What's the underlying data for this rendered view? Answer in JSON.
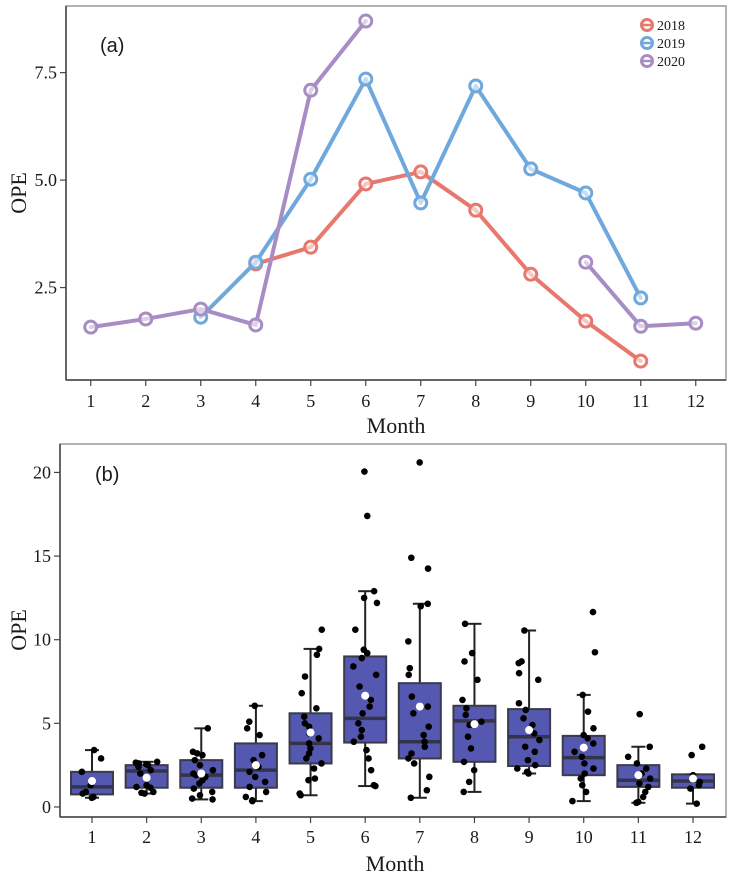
{
  "chart_data": [
    {
      "type": "line",
      "panel_label": "(a)",
      "title": "",
      "xlabel": "Month",
      "ylabel": "OPE",
      "x_ticks": [
        1,
        2,
        3,
        4,
        5,
        6,
        7,
        8,
        9,
        10,
        11,
        12
      ],
      "x_tick_labels": [
        "1",
        "2",
        "3",
        "4",
        "5",
        "6",
        "7",
        "8",
        "9",
        "10",
        "11",
        "12"
      ],
      "y_ticks": [
        2.5,
        5.0,
        7.5
      ],
      "y_tick_labels": [
        "2.5",
        "5.0",
        "7.5"
      ],
      "xlim": [
        0.55,
        12.55
      ],
      "ylim": [
        0.35,
        9.05
      ],
      "grid": false,
      "legend_position": "top-right",
      "marker": "open-circle",
      "series": [
        {
          "name": "2018",
          "color": "#E8776D",
          "segments": [
            {
              "x": [
                4,
                5,
                6,
                7,
                8,
                9,
                10,
                11
              ],
              "y": [
                3.05,
                3.44,
                4.91,
                5.19,
                4.3,
                2.81,
                1.72,
                0.79
              ]
            }
          ]
        },
        {
          "name": "2019",
          "color": "#6FA8DC",
          "segments": [
            {
              "x": [
                3,
                4,
                5,
                6,
                7,
                8,
                9,
                10,
                11
              ],
              "y": [
                1.81,
                3.09,
                5.02,
                7.35,
                4.47,
                7.19,
                5.26,
                4.7,
                2.26
              ]
            }
          ]
        },
        {
          "name": "2020",
          "color": "#A88DC4",
          "segments": [
            {
              "x": [
                1,
                2,
                3,
                4,
                5,
                6
              ],
              "y": [
                1.58,
                1.77,
                2.0,
                1.63,
                7.09,
                8.7
              ]
            },
            {
              "x": [
                10,
                11,
                12
              ],
              "y": [
                3.09,
                1.6,
                1.67
              ]
            }
          ]
        }
      ]
    },
    {
      "type": "box",
      "panel_label": "(b)",
      "title": "",
      "xlabel": "Month",
      "ylabel": "OPE",
      "x_tick_labels": [
        "1",
        "2",
        "3",
        "4",
        "5",
        "6",
        "7",
        "8",
        "9",
        "10",
        "11",
        "12"
      ],
      "y_ticks": [
        0,
        5,
        10,
        15,
        20
      ],
      "y_tick_labels": [
        "0",
        "5",
        "10",
        "15",
        "20"
      ],
      "ylim": [
        -0.6,
        21.7
      ],
      "grid": false,
      "box_color": "#5558B0",
      "box_edge_color": "#3A3A4A",
      "point_color": "#000000",
      "mean_marker_color": "#FFFFFF",
      "boxes": [
        {
          "month": "1",
          "whisker_low": 0.55,
          "q1": 0.75,
          "median": 1.2,
          "q3": 2.1,
          "whisker_high": 3.4,
          "mean": 1.55,
          "points": [
            0.55,
            0.6,
            0.8,
            0.9,
            1.3,
            1.55,
            2.1,
            2.9,
            3.4
          ]
        },
        {
          "month": "2",
          "whisker_low": 0.8,
          "q1": 1.15,
          "median": 2.15,
          "q3": 2.5,
          "whisker_high": 2.7,
          "mean": 1.75,
          "points": [
            0.8,
            0.85,
            0.9,
            1.15,
            1.2,
            1.3,
            2.0,
            2.2,
            2.4,
            2.5,
            2.55,
            2.6,
            2.65,
            2.7
          ]
        },
        {
          "month": "3",
          "whisker_low": 0.45,
          "q1": 1.15,
          "median": 1.9,
          "q3": 2.8,
          "whisker_high": 4.7,
          "mean": 2.0,
          "points": [
            0.45,
            0.5,
            0.7,
            0.9,
            1.1,
            1.4,
            1.6,
            1.8,
            1.9,
            2.0,
            2.2,
            2.5,
            2.8,
            3.1,
            3.2,
            3.3,
            4.7
          ]
        },
        {
          "month": "4",
          "whisker_low": 0.35,
          "q1": 1.15,
          "median": 2.2,
          "q3": 3.8,
          "whisker_high": 6.05,
          "mean": 2.5,
          "points": [
            0.35,
            0.4,
            0.6,
            0.9,
            1.2,
            1.5,
            1.8,
            2.1,
            2.4,
            2.8,
            3.1,
            4.3,
            4.7,
            5.1,
            6.05
          ]
        },
        {
          "month": "5",
          "whisker_low": 0.7,
          "q1": 2.6,
          "median": 3.8,
          "q3": 5.6,
          "whisker_high": 9.45,
          "mean": 4.45,
          "points": [
            0.7,
            0.8,
            1.6,
            1.7,
            2.3,
            2.6,
            2.9,
            3.2,
            3.5,
            3.8,
            4.1,
            4.4,
            4.8,
            5.0,
            5.4,
            5.9,
            6.8,
            7.8,
            9.1,
            9.45,
            10.6
          ]
        },
        {
          "month": "6",
          "whisker_low": 1.25,
          "q1": 3.85,
          "median": 5.3,
          "q3": 9.0,
          "whisker_high": 12.9,
          "mean": 6.65,
          "points": [
            1.25,
            1.3,
            2.2,
            2.9,
            3.4,
            3.9,
            4.2,
            4.6,
            5.0,
            5.6,
            6.0,
            6.4,
            7.2,
            7.9,
            8.4,
            8.9,
            9.2,
            9.4,
            10.6,
            12.2,
            12.5,
            12.9,
            17.4,
            20.05
          ]
        },
        {
          "month": "7",
          "whisker_low": 0.55,
          "q1": 2.9,
          "median": 3.9,
          "q3": 7.4,
          "whisker_high": 12.15,
          "mean": 6.0,
          "points": [
            0.55,
            1.0,
            1.8,
            2.6,
            2.9,
            3.2,
            3.6,
            3.9,
            4.3,
            4.8,
            5.6,
            6.0,
            6.6,
            7.9,
            8.3,
            9.9,
            12.0,
            12.15,
            14.25,
            14.9,
            20.6
          ]
        },
        {
          "month": "8",
          "whisker_low": 0.9,
          "q1": 2.7,
          "median": 5.15,
          "q3": 6.05,
          "whisker_high": 10.95,
          "mean": 4.95,
          "points": [
            0.9,
            1.5,
            2.2,
            2.7,
            3.5,
            4.2,
            4.9,
            5.1,
            5.5,
            5.9,
            6.4,
            7.6,
            8.7,
            9.2,
            10.95
          ]
        },
        {
          "month": "9",
          "whisker_low": 2.0,
          "q1": 2.45,
          "median": 4.2,
          "q3": 5.85,
          "whisker_high": 10.55,
          "mean": 4.6,
          "points": [
            2.0,
            2.1,
            2.3,
            2.5,
            2.8,
            3.3,
            3.6,
            4.0,
            4.4,
            4.9,
            5.3,
            5.8,
            6.2,
            7.6,
            8.0,
            8.6,
            8.7,
            10.55
          ]
        },
        {
          "month": "10",
          "whisker_low": 0.35,
          "q1": 1.9,
          "median": 2.95,
          "q3": 4.25,
          "whisker_high": 6.7,
          "mean": 3.55,
          "points": [
            0.35,
            0.9,
            1.3,
            1.7,
            2.0,
            2.3,
            2.6,
            3.0,
            3.3,
            3.8,
            4.1,
            4.3,
            4.7,
            5.7,
            6.7,
            9.25,
            11.65
          ]
        },
        {
          "month": "11",
          "whisker_low": 0.25,
          "q1": 1.2,
          "median": 1.6,
          "q3": 2.5,
          "whisker_high": 3.6,
          "mean": 1.9,
          "points": [
            0.25,
            0.3,
            0.6,
            0.9,
            1.2,
            1.4,
            1.7,
            2.0,
            2.3,
            2.6,
            3.0,
            3.6,
            5.55
          ]
        },
        {
          "month": "12",
          "whisker_low": 0.2,
          "q1": 1.15,
          "median": 1.55,
          "q3": 1.95,
          "whisker_high": 1.95,
          "mean": 1.7,
          "points": [
            0.2,
            1.1,
            1.3,
            1.5,
            1.9,
            3.1,
            3.6
          ]
        }
      ]
    }
  ]
}
